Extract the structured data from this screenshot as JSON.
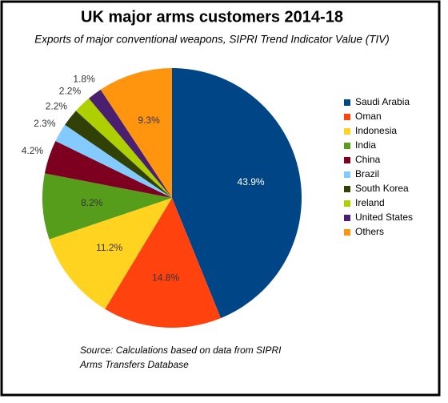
{
  "chart_data": {
    "type": "pie",
    "title": "UK major arms customers 2014-18",
    "subtitle": "Exports of major conventional weapons, SIPRI Trend Indicator Value (TIV)",
    "categories": [
      "Saudi Arabia",
      "Oman",
      "Indonesia",
      "India",
      "China",
      "Brazil",
      "South Korea",
      "Ireland",
      "United States",
      "Others"
    ],
    "values": [
      43.9,
      14.8,
      11.2,
      8.2,
      4.2,
      2.3,
      2.2,
      2.2,
      1.8,
      9.3
    ],
    "value_labels": [
      "43.9%",
      "14.8%",
      "11.2%",
      "8.2%",
      "4.2%",
      "2.3%",
      "2.2%",
      "2.2%",
      "1.8%",
      "9.3%"
    ],
    "colors": [
      "#004586",
      "#ff420e",
      "#ffd320",
      "#579d1c",
      "#7e0021",
      "#83caff",
      "#314004",
      "#aecf00",
      "#4b1f6f",
      "#ff950e"
    ],
    "legend": "right",
    "source": [
      "Source: Calculations based on data from SIPRI",
      "Arms Transfers Database"
    ]
  }
}
